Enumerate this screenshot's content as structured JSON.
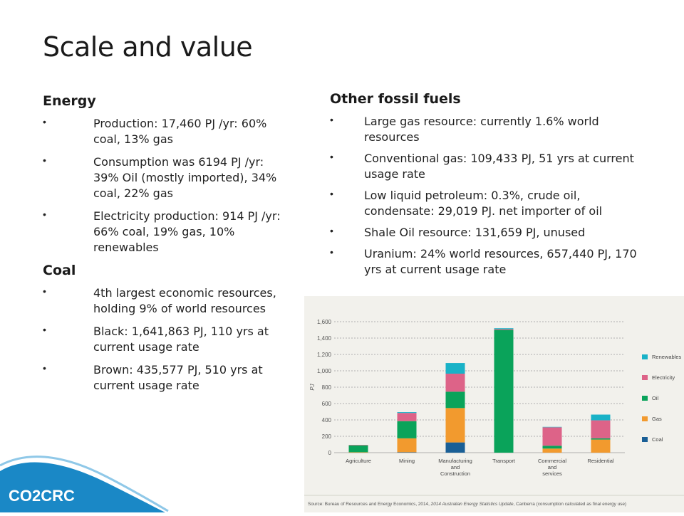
{
  "slide": {
    "title": "Scale and value"
  },
  "left": {
    "energy_heading": "Energy",
    "energy_bullets": [
      "Production: 17,460 PJ /yr: 60% coal, 13% gas",
      "Consumption was 6194 PJ /yr: 39% Oil (mostly imported), 34% coal, 22% gas",
      "Electricity production: 914 PJ /yr: 66% coal, 19% gas, 10% renewables"
    ],
    "coal_heading": "Coal",
    "coal_bullets": [
      "4th largest economic resources, holding 9% of world resources",
      "Black: 1,641,863 PJ, 110 yrs at current usage rate",
      "Brown: 435,577 PJ, 510 yrs at current usage rate"
    ]
  },
  "right": {
    "heading": "Other fossil fuels",
    "bullets": [
      "Large gas resource: currently 1.6% world resources",
      "Conventional gas: 109,433 PJ, 51 yrs at current usage rate",
      "Low liquid petroleum: 0.3%, crude oil, condensate: 29,019 PJ. net importer of oil",
      "Shale Oil resource: 131,659 PJ, unused",
      "Uranium: 24% world resources, 657,440 PJ, 170 yrs at current usage rate"
    ]
  },
  "logo": {
    "text": "CO2CRC"
  },
  "chart_data": {
    "type": "bar",
    "stacked": true,
    "ylabel": "PJ",
    "ylim": [
      0,
      1600
    ],
    "yticks": [
      "0",
      "200",
      "400",
      "600",
      "800",
      "1,000",
      "1,200",
      "1,400",
      "1,600"
    ],
    "grid": true,
    "legend_position": "right",
    "categories": [
      "Agriculture",
      "Mining",
      "Manufacturing and Construction",
      "Transport",
      "Commercial and services",
      "Residential"
    ],
    "category_lines": [
      [
        "Agriculture"
      ],
      [
        "Mining"
      ],
      [
        "Manufacturing",
        "and",
        "Construction"
      ],
      [
        "Transport"
      ],
      [
        "Commercial",
        "and",
        "services"
      ],
      [
        "Residential"
      ]
    ],
    "series": [
      {
        "name": "Coal",
        "color": "#1a5f96",
        "values": [
          0,
          5,
          125,
          0,
          0,
          0
        ]
      },
      {
        "name": "Gas",
        "color": "#f29a2e",
        "values": [
          5,
          170,
          420,
          0,
          50,
          160
        ]
      },
      {
        "name": "Oil",
        "color": "#0aa35a",
        "values": [
          85,
          210,
          200,
          1500,
          35,
          15
        ]
      },
      {
        "name": "Electricity",
        "color": "#dd6388",
        "values": [
          5,
          100,
          220,
          10,
          225,
          220
        ]
      },
      {
        "name": "Renewables",
        "color": "#19b2c7",
        "values": [
          0,
          10,
          130,
          10,
          5,
          70
        ]
      }
    ],
    "legend_order": [
      "Renewables",
      "Electricity",
      "Oil",
      "Gas",
      "Coal"
    ],
    "source_prefix": "Source: Bureau of Resources and Energy Economics, 2014, ",
    "source_italic": "2014 Australian Energy Statistics Update",
    "source_suffix": ", Canberra (consumption calculated as final energy use)"
  }
}
